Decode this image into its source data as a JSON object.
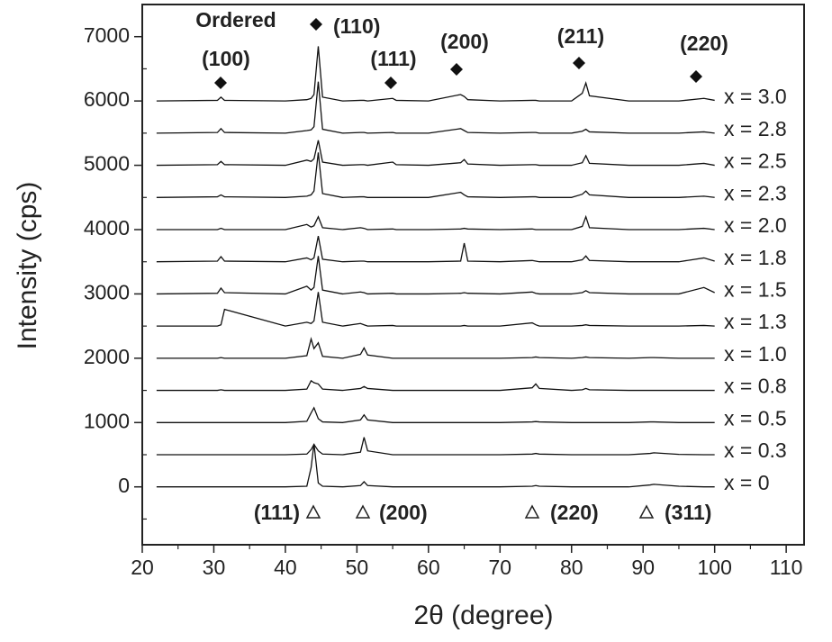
{
  "chart_data": {
    "type": "line",
    "x_label": "2θ (degree)",
    "y_label": "Intensity (cps)",
    "xlim": [
      20,
      112.5
    ],
    "ylim": [
      -900,
      7500
    ],
    "xticks": [
      20,
      30,
      40,
      50,
      60,
      70,
      80,
      90,
      100,
      110
    ],
    "yticks": [
      0,
      1000,
      2000,
      3000,
      4000,
      5000,
      6000,
      7000
    ],
    "xminorticks": [
      25,
      35,
      45,
      55,
      65,
      75,
      85,
      95,
      105
    ],
    "yminorticks": [
      -500,
      500,
      1500,
      2500,
      3500,
      4500,
      5500,
      6500
    ],
    "ordered_label": "Ordered",
    "ordered_peaks": [
      "(100)",
      "(110)",
      "(111)",
      "(200)",
      "(211)",
      "(220)"
    ],
    "disordered_peaks": [
      "(111)",
      "(200)",
      "(220)",
      "(311)"
    ],
    "x": [
      22,
      30.5,
      31,
      31.5,
      40,
      43,
      43.6,
      44,
      44.6,
      45.2,
      48,
      50.5,
      51,
      51.5,
      55,
      55.5,
      60,
      64.5,
      65,
      65.5,
      70,
      74.5,
      75,
      75.5,
      80,
      81.5,
      82,
      82.5,
      88,
      91,
      91.5,
      95,
      98.5,
      100
    ],
    "series": [
      {
        "name": "x = 0",
        "color": "#111111",
        "values": [
          0,
          0,
          0,
          0,
          0,
          10,
          300,
          670,
          60,
          10,
          0,
          20,
          80,
          20,
          0,
          0,
          0,
          0,
          0,
          0,
          0,
          10,
          20,
          10,
          0,
          0,
          0,
          0,
          0,
          30,
          40,
          10,
          0,
          0
        ]
      },
      {
        "name": "x = 0.3",
        "color": "#111111",
        "values": [
          500,
          500,
          500,
          500,
          500,
          510,
          580,
          660,
          560,
          510,
          500,
          540,
          770,
          560,
          500,
          500,
          500,
          500,
          500,
          500,
          500,
          510,
          520,
          510,
          500,
          500,
          500,
          500,
          500,
          520,
          530,
          505,
          500,
          500
        ]
      },
      {
        "name": "x = 0.5",
        "color": "#111111",
        "values": [
          1000,
          1000,
          1000,
          1000,
          1000,
          1020,
          1150,
          1230,
          1060,
          1010,
          1000,
          1040,
          1120,
          1040,
          1000,
          1000,
          1000,
          1000,
          1000,
          1000,
          1000,
          1010,
          1015,
          1010,
          1000,
          1000,
          1000,
          1000,
          1000,
          1010,
          1010,
          1000,
          1000,
          1000
        ]
      },
      {
        "name": "x = 0.8",
        "color": "#111111",
        "values": [
          1500,
          1500,
          1510,
          1500,
          1500,
          1520,
          1650,
          1620,
          1600,
          1520,
          1500,
          1530,
          1560,
          1530,
          1500,
          1500,
          1500,
          1500,
          1500,
          1500,
          1500,
          1540,
          1600,
          1530,
          1500,
          1510,
          1530,
          1510,
          1500,
          1500,
          1500,
          1500,
          1500,
          1500
        ]
      },
      {
        "name": "x = 1.0",
        "color": "#111111",
        "values": [
          2000,
          2000,
          2010,
          2000,
          2000,
          2040,
          2300,
          2150,
          2240,
          2030,
          2000,
          2060,
          2160,
          2050,
          2000,
          2000,
          2000,
          2000,
          2000,
          2000,
          2000,
          2010,
          2020,
          2010,
          2000,
          2010,
          2020,
          2010,
          2000,
          2010,
          2010,
          2000,
          2000,
          2000
        ]
      },
      {
        "name": "x = 1.3",
        "color": "#111111",
        "values": [
          2500,
          2500,
          2520,
          2760,
          2500,
          2560,
          2540,
          2580,
          3030,
          2560,
          2500,
          2540,
          2520,
          2500,
          2510,
          2500,
          2500,
          2500,
          2510,
          2500,
          2500,
          2550,
          2520,
          2500,
          2500,
          2510,
          2520,
          2510,
          2500,
          2500,
          2500,
          2500,
          2510,
          2500
        ]
      },
      {
        "name": "x = 1.5",
        "color": "#111111",
        "values": [
          3000,
          3010,
          3090,
          3020,
          3000,
          3120,
          3060,
          3100,
          3590,
          3060,
          3000,
          3030,
          3020,
          3000,
          3010,
          3000,
          3000,
          3010,
          3020,
          3010,
          3000,
          3030,
          3010,
          3000,
          3000,
          3020,
          3050,
          3020,
          3000,
          3000,
          3000,
          3000,
          3100,
          3020
        ]
      },
      {
        "name": "x = 1.8",
        "color": "#111111",
        "values": [
          3500,
          3510,
          3580,
          3510,
          3500,
          3560,
          3530,
          3560,
          3900,
          3540,
          3500,
          3510,
          3510,
          3500,
          3500,
          3500,
          3500,
          3510,
          3790,
          3510,
          3500,
          3520,
          3510,
          3500,
          3500,
          3530,
          3590,
          3520,
          3500,
          3500,
          3500,
          3500,
          3560,
          3510
        ]
      },
      {
        "name": "x = 2.0",
        "color": "#111111",
        "values": [
          4000,
          4000,
          4020,
          4000,
          4000,
          4080,
          4040,
          4060,
          4200,
          4030,
          4000,
          4030,
          4020,
          4000,
          4010,
          4000,
          4000,
          4010,
          4020,
          4010,
          4000,
          4010,
          4000,
          4000,
          4000,
          4050,
          4200,
          4030,
          4000,
          4000,
          4000,
          4000,
          4020,
          4000
        ]
      },
      {
        "name": "x = 2.3",
        "color": "#111111",
        "values": [
          4500,
          4510,
          4540,
          4510,
          4500,
          4520,
          4540,
          4600,
          5200,
          4560,
          4500,
          4510,
          4510,
          4500,
          4500,
          4500,
          4500,
          4580,
          4540,
          4510,
          4500,
          4510,
          4510,
          4500,
          4500,
          4550,
          4600,
          4540,
          4500,
          4500,
          4500,
          4500,
          4520,
          4500
        ]
      },
      {
        "name": "x = 2.5",
        "color": "#111111",
        "values": [
          5000,
          5010,
          5060,
          5010,
          5000,
          5080,
          5060,
          5100,
          5390,
          5050,
          5000,
          5010,
          5010,
          5000,
          5050,
          5010,
          5000,
          5040,
          5090,
          5020,
          5000,
          5010,
          5010,
          5000,
          5000,
          5040,
          5150,
          5030,
          5000,
          5000,
          5000,
          5000,
          5030,
          5000
        ]
      },
      {
        "name": "x = 2.8",
        "color": "#111111",
        "values": [
          5500,
          5510,
          5570,
          5510,
          5500,
          5540,
          5550,
          5600,
          6300,
          5560,
          5500,
          5510,
          5510,
          5500,
          5510,
          5500,
          5500,
          5570,
          5540,
          5510,
          5500,
          5510,
          5510,
          5500,
          5500,
          5530,
          5560,
          5520,
          5500,
          5500,
          5500,
          5500,
          5520,
          5500
        ]
      },
      {
        "name": "x = 3.0",
        "color": "#111111",
        "values": [
          6000,
          6010,
          6060,
          6010,
          6000,
          6020,
          6040,
          6100,
          6850,
          6060,
          6000,
          6010,
          6010,
          6000,
          6040,
          6010,
          6000,
          6100,
          6070,
          6020,
          6000,
          6010,
          6010,
          6000,
          6000,
          6120,
          6280,
          6080,
          6000,
          6000,
          6000,
          6000,
          6040,
          6010
        ]
      }
    ]
  }
}
